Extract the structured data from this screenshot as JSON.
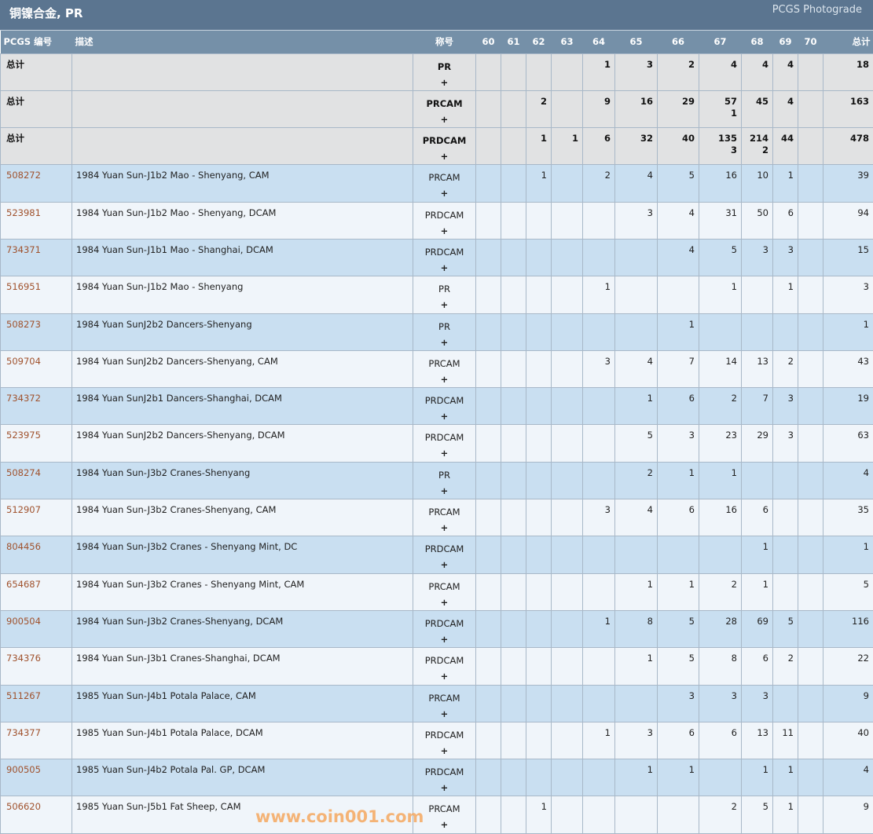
{
  "header": {
    "title": "铜镍合金, PR",
    "brand": "PCGS Photograde"
  },
  "columns": {
    "code": "PCGS 编号",
    "desc": "描述",
    "designation": "称号",
    "grades": [
      "60",
      "61",
      "62",
      "63",
      "64",
      "65",
      "66",
      "67",
      "68",
      "69",
      "70"
    ],
    "total": "总计"
  },
  "plus_symbol": "+",
  "totals": [
    {
      "label": "总计",
      "designation": "PR",
      "grades": [
        "",
        "",
        "",
        "",
        "1",
        "3",
        "2",
        "4",
        "4",
        "4",
        ""
      ],
      "plus": [
        "",
        "",
        "",
        "",
        "",
        "",
        "",
        "",
        "",
        "",
        ""
      ],
      "total": "18"
    },
    {
      "label": "总计",
      "designation": "PRCAM",
      "grades": [
        "",
        "",
        "2",
        "",
        "9",
        "16",
        "29",
        "57",
        "45",
        "4",
        ""
      ],
      "plus": [
        "",
        "",
        "",
        "",
        "",
        "",
        "",
        "1",
        "",
        "",
        ""
      ],
      "total": "163"
    },
    {
      "label": "总计",
      "designation": "PRDCAM",
      "grades": [
        "",
        "",
        "1",
        "1",
        "6",
        "32",
        "40",
        "135",
        "214",
        "44",
        ""
      ],
      "plus": [
        "",
        "",
        "",
        "",
        "",
        "",
        "",
        "3",
        "2",
        "",
        ""
      ],
      "total": "478"
    }
  ],
  "rows": [
    {
      "code": "508272",
      "desc": "1984 Yuan Sun-J1b2 Mao - Shenyang, CAM",
      "designation": "PRCAM",
      "grades": [
        "",
        "",
        "1",
        "",
        "2",
        "4",
        "5",
        "16",
        "10",
        "1",
        ""
      ],
      "total": "39"
    },
    {
      "code": "523981",
      "desc": "1984 Yuan Sun-J1b2 Mao - Shenyang, DCAM",
      "designation": "PRDCAM",
      "grades": [
        "",
        "",
        "",
        "",
        "",
        "3",
        "4",
        "31",
        "50",
        "6",
        ""
      ],
      "total": "94"
    },
    {
      "code": "734371",
      "desc": "1984 Yuan Sun-J1b1 Mao - Shanghai, DCAM",
      "designation": "PRDCAM",
      "grades": [
        "",
        "",
        "",
        "",
        "",
        "",
        "4",
        "5",
        "3",
        "3",
        ""
      ],
      "total": "15"
    },
    {
      "code": "516951",
      "desc": "1984 Yuan Sun-J1b2 Mao - Shenyang",
      "designation": "PR",
      "grades": [
        "",
        "",
        "",
        "",
        "1",
        "",
        "",
        "1",
        "",
        "1",
        ""
      ],
      "total": "3"
    },
    {
      "code": "508273",
      "desc": "1984 Yuan SunJ2b2 Dancers-Shenyang",
      "designation": "PR",
      "grades": [
        "",
        "",
        "",
        "",
        "",
        "",
        "1",
        "",
        "",
        "",
        ""
      ],
      "total": "1"
    },
    {
      "code": "509704",
      "desc": "1984 Yuan SunJ2b2 Dancers-Shenyang, CAM",
      "designation": "PRCAM",
      "grades": [
        "",
        "",
        "",
        "",
        "3",
        "4",
        "7",
        "14",
        "13",
        "2",
        ""
      ],
      "total": "43"
    },
    {
      "code": "734372",
      "desc": "1984 Yuan SunJ2b1 Dancers-Shanghai, DCAM",
      "designation": "PRDCAM",
      "grades": [
        "",
        "",
        "",
        "",
        "",
        "1",
        "6",
        "2",
        "7",
        "3",
        ""
      ],
      "total": "19"
    },
    {
      "code": "523975",
      "desc": "1984 Yuan SunJ2b2 Dancers-Shenyang, DCAM",
      "designation": "PRDCAM",
      "grades": [
        "",
        "",
        "",
        "",
        "",
        "5",
        "3",
        "23",
        "29",
        "3",
        ""
      ],
      "total": "63"
    },
    {
      "code": "508274",
      "desc": "1984 Yuan Sun-J3b2 Cranes-Shenyang",
      "designation": "PR",
      "grades": [
        "",
        "",
        "",
        "",
        "",
        "2",
        "1",
        "1",
        "",
        "",
        ""
      ],
      "total": "4"
    },
    {
      "code": "512907",
      "desc": "1984 Yuan Sun-J3b2 Cranes-Shenyang, CAM",
      "designation": "PRCAM",
      "grades": [
        "",
        "",
        "",
        "",
        "3",
        "4",
        "6",
        "16",
        "6",
        "",
        ""
      ],
      "total": "35"
    },
    {
      "code": "804456",
      "desc": "1984 Yuan Sun-J3b2 Cranes - Shenyang Mint, DC",
      "designation": "PRDCAM",
      "grades": [
        "",
        "",
        "",
        "",
        "",
        "",
        "",
        "",
        "1",
        "",
        ""
      ],
      "total": "1"
    },
    {
      "code": "654687",
      "desc": "1984 Yuan Sun-J3b2 Cranes - Shenyang Mint, CAM",
      "designation": "PRCAM",
      "grades": [
        "",
        "",
        "",
        "",
        "",
        "1",
        "1",
        "2",
        "1",
        "",
        ""
      ],
      "total": "5"
    },
    {
      "code": "900504",
      "desc": "1984 Yuan Sun-J3b2 Cranes-Shenyang, DCAM",
      "designation": "PRDCAM",
      "grades": [
        "",
        "",
        "",
        "",
        "1",
        "8",
        "5",
        "28",
        "69",
        "5",
        ""
      ],
      "total": "116"
    },
    {
      "code": "734376",
      "desc": "1984 Yuan Sun-J3b1 Cranes-Shanghai, DCAM",
      "designation": "PRDCAM",
      "grades": [
        "",
        "",
        "",
        "",
        "",
        "1",
        "5",
        "8",
        "6",
        "2",
        ""
      ],
      "total": "22"
    },
    {
      "code": "511267",
      "desc": "1985 Yuan Sun-J4b1 Potala Palace, CAM",
      "designation": "PRCAM",
      "grades": [
        "",
        "",
        "",
        "",
        "",
        "",
        "3",
        "3",
        "3",
        "",
        ""
      ],
      "total": "9"
    },
    {
      "code": "734377",
      "desc": "1985 Yuan Sun-J4b1 Potala Palace, DCAM",
      "designation": "PRDCAM",
      "grades": [
        "",
        "",
        "",
        "",
        "1",
        "3",
        "6",
        "6",
        "13",
        "11",
        ""
      ],
      "total": "40"
    },
    {
      "code": "900505",
      "desc": "1985 Yuan Sun-J4b2 Potala Pal. GP, DCAM",
      "designation": "PRDCAM",
      "grades": [
        "",
        "",
        "",
        "",
        "",
        "1",
        "1",
        "",
        "1",
        "1",
        ""
      ],
      "total": "4"
    },
    {
      "code": "506620",
      "desc": "1985 Yuan Sun-J5b1 Fat Sheep, CAM",
      "designation": "PRCAM",
      "grades": [
        "",
        "",
        "1",
        "",
        "",
        "",
        "",
        "2",
        "5",
        "1",
        ""
      ],
      "total": "9"
    }
  ],
  "watermark": "www.coin001.com"
}
